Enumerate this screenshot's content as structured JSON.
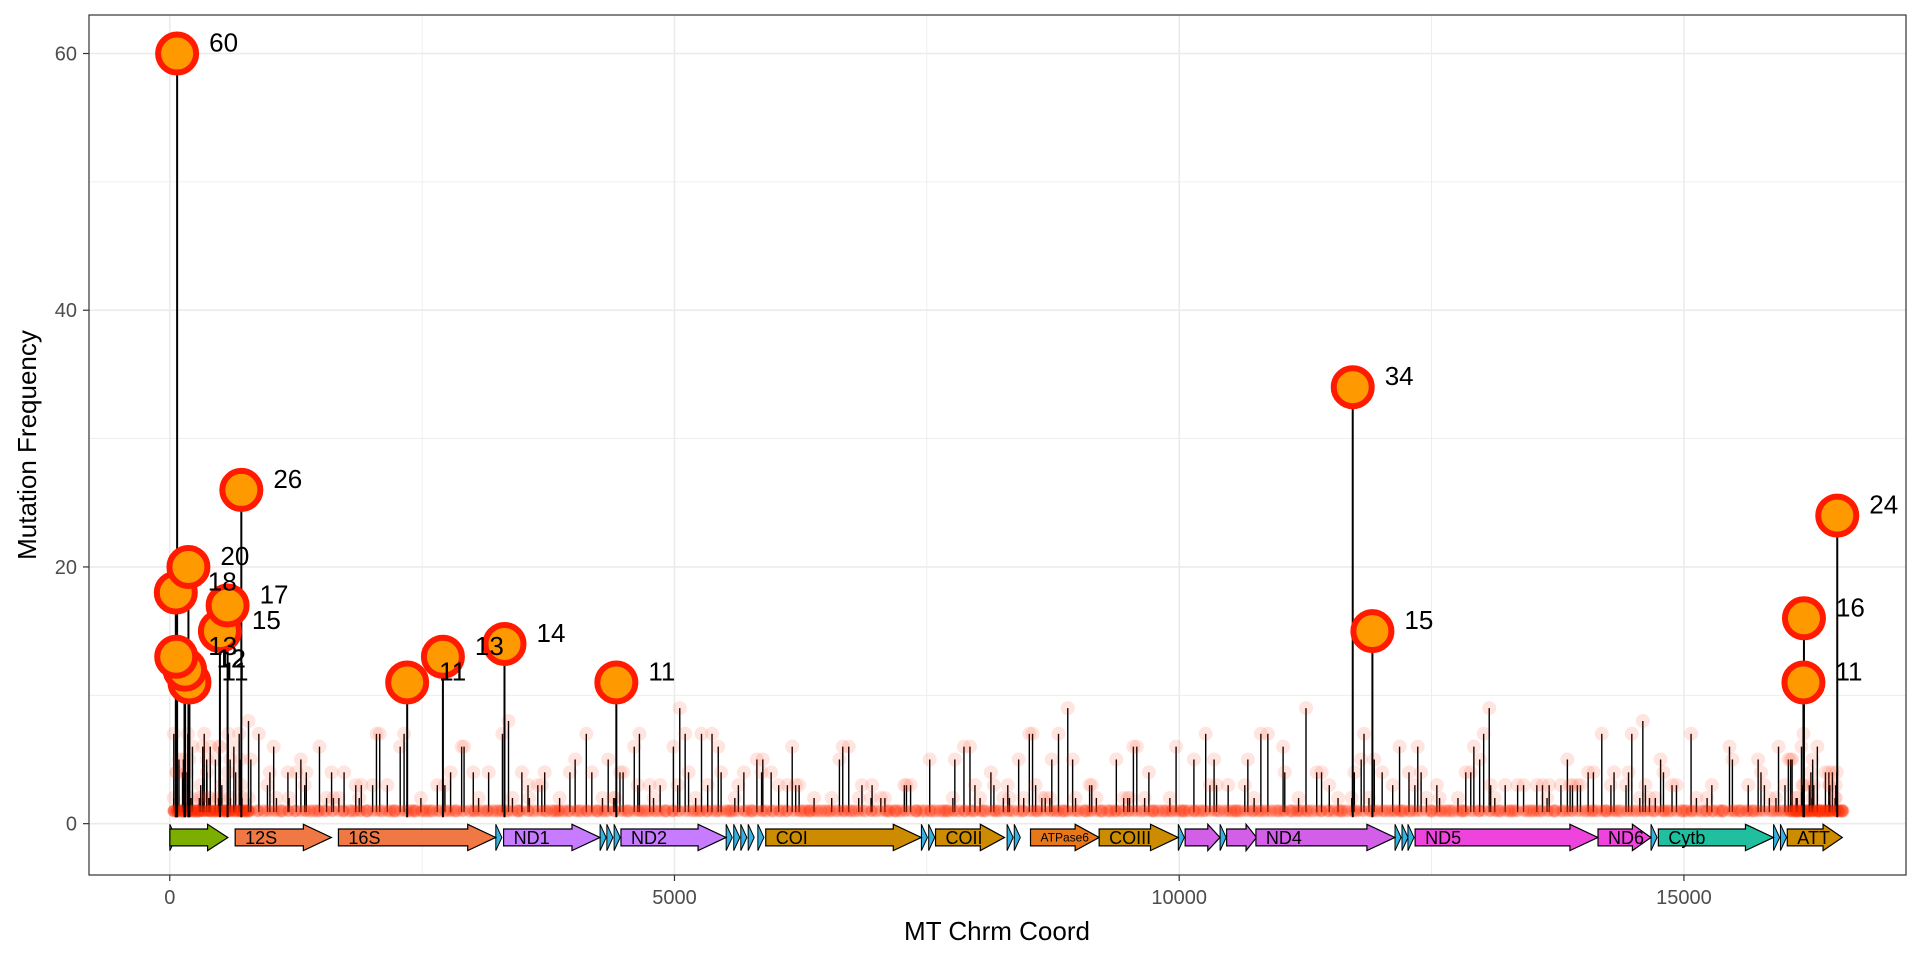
{
  "chart_data": {
    "type": "lollipop",
    "title": "",
    "xlabel": "MT Chrm Coord",
    "ylabel": "Mutation Frequency",
    "xlim": [
      -800,
      17200
    ],
    "ylim": [
      -4,
      63
    ],
    "xticks": [
      0,
      5000,
      10000,
      15000
    ],
    "yticks": [
      0,
      20,
      40,
      60
    ],
    "x_tick_labels": [
      "0",
      "5000",
      "10000",
      "15000"
    ],
    "y_tick_labels": [
      "0",
      "20",
      "40",
      "60"
    ],
    "grid": true,
    "colors": {
      "highlight_fill": "#ff9900",
      "highlight_stroke": "#ff1a00",
      "background_point": "#ff2a00",
      "stem": "#000000",
      "grid": "#ebebeb"
    },
    "highlighted_points": [
      {
        "x": 73,
        "y": 60,
        "label": "60"
      },
      {
        "x": 709,
        "y": 26,
        "label": "26"
      },
      {
        "x": 185,
        "y": 20,
        "label": "20"
      },
      {
        "x": 60,
        "y": 18,
        "label": "18"
      },
      {
        "x": 573,
        "y": 17,
        "label": "17"
      },
      {
        "x": 497,
        "y": 15,
        "label": "15"
      },
      {
        "x": 64,
        "y": 13,
        "label": "13"
      },
      {
        "x": 146,
        "y": 12,
        "label": "12"
      },
      {
        "x": 152,
        "y": 12,
        "label": "12"
      },
      {
        "x": 195,
        "y": 11,
        "label": "11"
      },
      {
        "x": 2706,
        "y": 13,
        "label": "13"
      },
      {
        "x": 2352,
        "y": 11,
        "label": "11"
      },
      {
        "x": 3316,
        "y": 14,
        "label": "14"
      },
      {
        "x": 4424,
        "y": 11,
        "label": "11"
      },
      {
        "x": 11719,
        "y": 34,
        "label": "34"
      },
      {
        "x": 11914,
        "y": 15,
        "label": "15"
      },
      {
        "x": 16519,
        "y": 24,
        "label": "24"
      },
      {
        "x": 16189,
        "y": 16,
        "label": "16"
      },
      {
        "x": 16184,
        "y": 11,
        "label": "11"
      }
    ],
    "genes": [
      {
        "name": "",
        "start": 1,
        "end": 576,
        "color": "#7cae00"
      },
      {
        "name": "12S",
        "start": 648,
        "end": 1601,
        "color": "#f07845"
      },
      {
        "name": "16S",
        "start": 1671,
        "end": 3229,
        "color": "#f07845"
      },
      {
        "name": "ND1",
        "start": 3307,
        "end": 4262,
        "color": "#c77cff"
      },
      {
        "name": "ND2",
        "start": 4470,
        "end": 5511,
        "color": "#c77cff"
      },
      {
        "name": "COI",
        "start": 5904,
        "end": 7445,
        "color": "#cd8c00"
      },
      {
        "name": "COII",
        "start": 7586,
        "end": 8269,
        "color": "#cd8c00"
      },
      {
        "name": "ATPase6",
        "start": 8527,
        "end": 9207,
        "color": "#e6771a"
      },
      {
        "name": "COIII",
        "start": 9207,
        "end": 9990,
        "color": "#cd8c00"
      },
      {
        "name": "",
        "start": 10059,
        "end": 10404,
        "color": "#d35ee8"
      },
      {
        "name": "",
        "start": 10470,
        "end": 10766,
        "color": "#d35ee8"
      },
      {
        "name": "ND4",
        "start": 10760,
        "end": 12137,
        "color": "#d35ee8"
      },
      {
        "name": "ND5",
        "start": 12337,
        "end": 14148,
        "color": "#ee44dd"
      },
      {
        "name": "ND6",
        "start": 14149,
        "end": 14673,
        "color": "#ee44dd"
      },
      {
        "name": "Cytb",
        "start": 14747,
        "end": 15887,
        "color": "#1fbfa0"
      },
      {
        "name": "ATT",
        "start": 16024,
        "end": 16569,
        "color": "#cd8c00"
      }
    ]
  }
}
